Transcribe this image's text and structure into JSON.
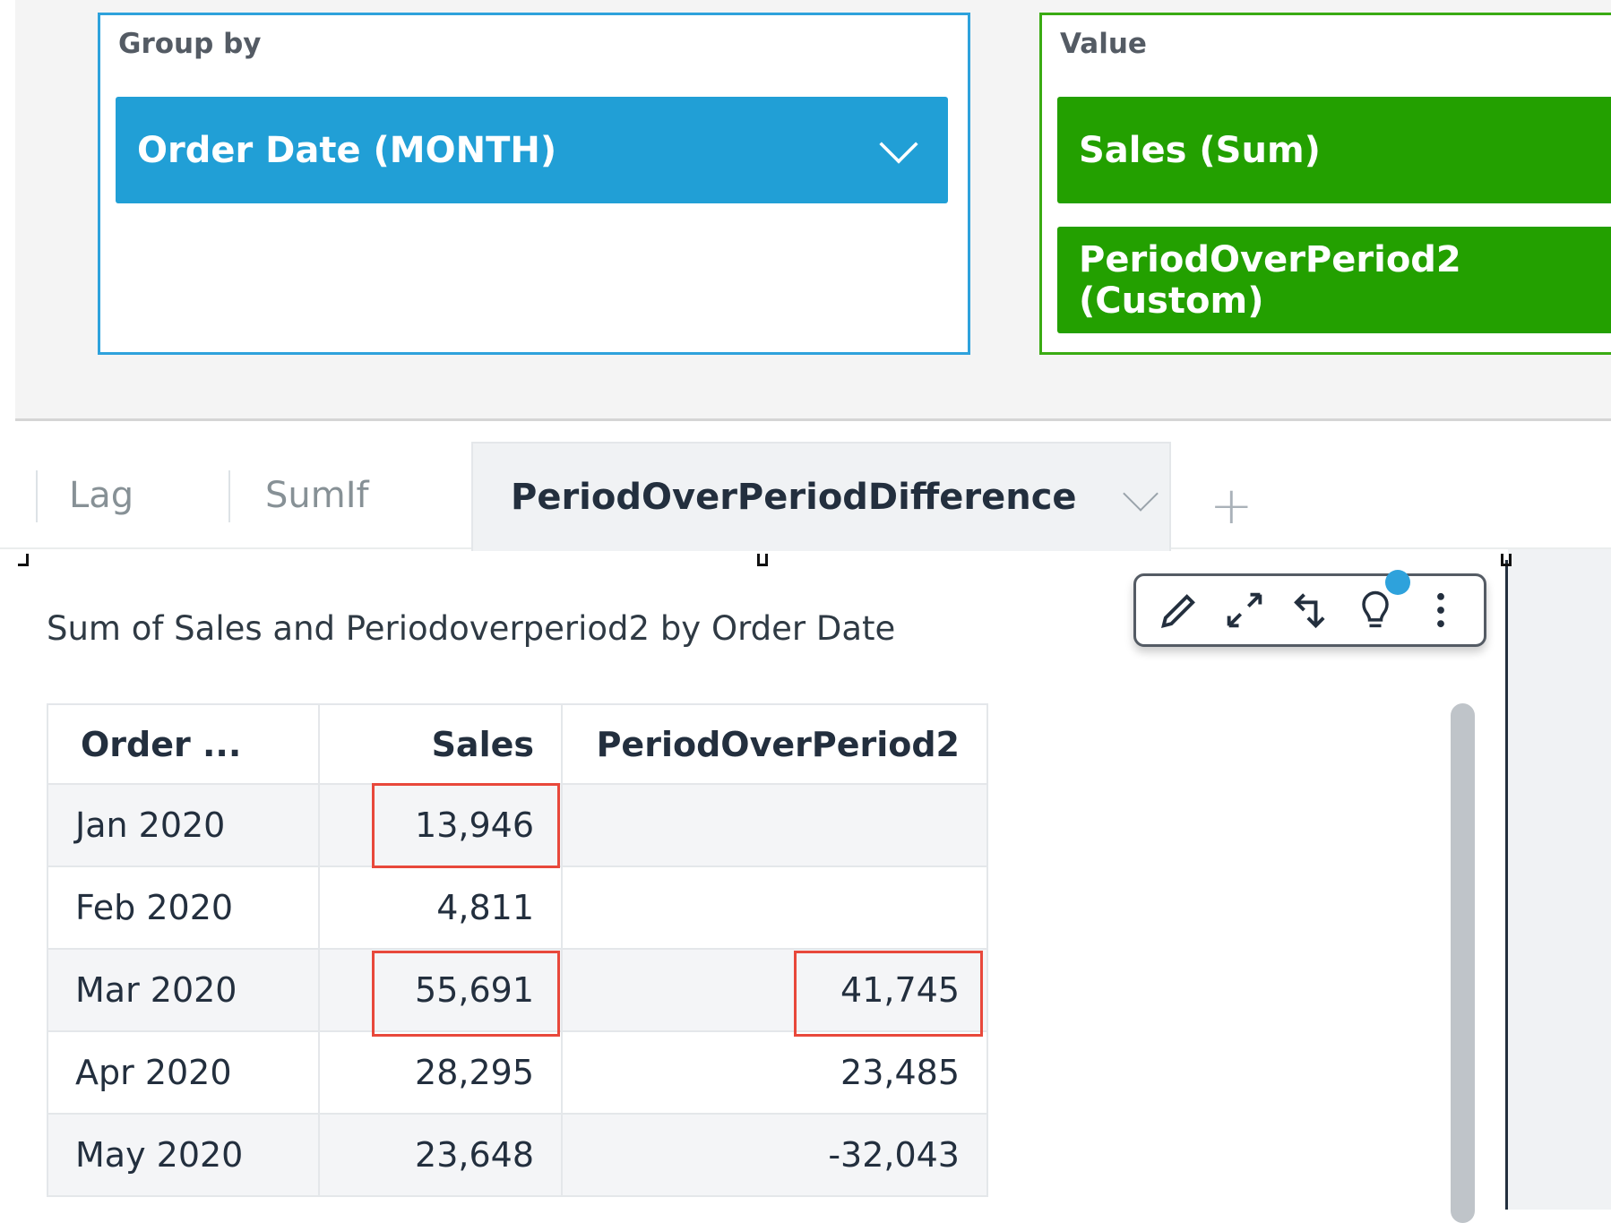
{
  "field_wells": {
    "group_by": {
      "label": "Group by",
      "field": "Order Date (MONTH)"
    },
    "value": {
      "label": "Value",
      "fields": [
        "Sales (Sum)",
        "PeriodOverPeriod2 (Custom)"
      ]
    }
  },
  "sheet_tabs": {
    "tabs": [
      "Lag",
      "SumIf",
      "PeriodOverPeriodDifference"
    ],
    "active": "PeriodOverPeriodDifference",
    "add_tab_label": "+"
  },
  "visual": {
    "title": "Sum of Sales and Periodoverperiod2 by Order Date",
    "toolbar": [
      "pencil-icon",
      "expand-icon",
      "swap-icon",
      "lightbulb-icon",
      "more-vertical-icon"
    ],
    "table": {
      "headers": [
        "Order ...",
        "Sales",
        "PeriodOverPeriod2"
      ],
      "rows": [
        [
          "Jan 2020",
          "13,946",
          ""
        ],
        [
          "Feb 2020",
          "4,811",
          ""
        ],
        [
          "Mar 2020",
          "55,691",
          "41,745"
        ],
        [
          "Apr 2020",
          "28,295",
          "23,485"
        ],
        [
          "May 2020",
          "23,648",
          "-32,043"
        ]
      ]
    }
  },
  "colors": {
    "group_by": "#219fd6",
    "value": "#23a000",
    "highlight": "#e8483b"
  }
}
